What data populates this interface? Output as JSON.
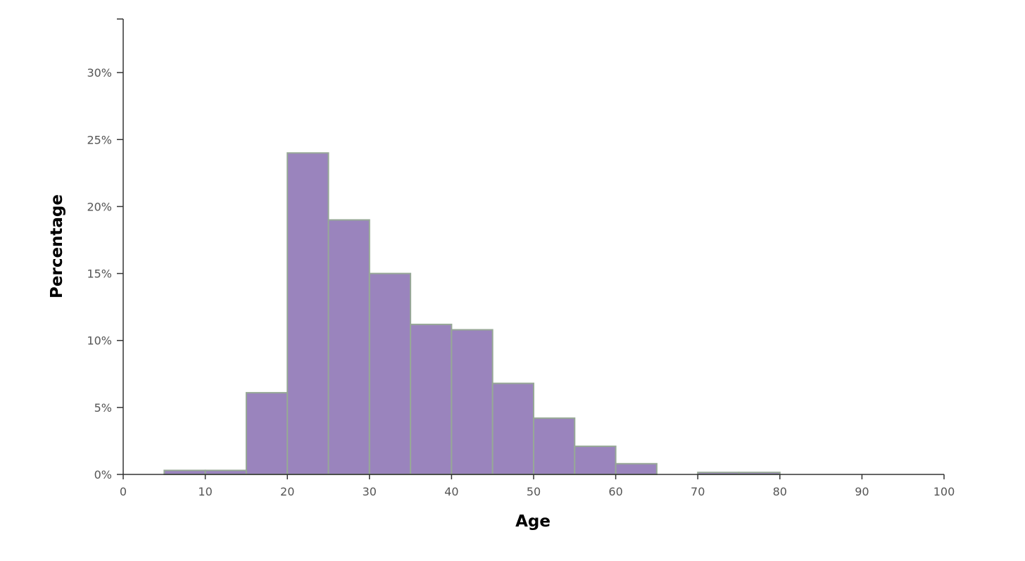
{
  "chart_data": {
    "type": "bar",
    "histogram": true,
    "title": "",
    "xlabel": "Age",
    "ylabel": "Percentage",
    "xlim": [
      0,
      100
    ],
    "ylim": [
      0,
      34
    ],
    "x_ticks": [
      0,
      10,
      20,
      30,
      40,
      50,
      60,
      70,
      80,
      90,
      100
    ],
    "x_tick_labels": [
      "0",
      "10",
      "20",
      "30",
      "40",
      "50",
      "60",
      "70",
      "80",
      "90",
      "100"
    ],
    "y_ticks": [
      0,
      5,
      10,
      15,
      20,
      25,
      30
    ],
    "y_tick_labels": [
      "0%",
      "5%",
      "10%",
      "15%",
      "20%",
      "25%",
      "30%"
    ],
    "grid": false,
    "bar_color": "#9a84bd",
    "bar_edge_color": "#97a897",
    "bins": [
      {
        "x0": 5,
        "x1": 10,
        "value": 0.3
      },
      {
        "x0": 10,
        "x1": 15,
        "value": 0.3
      },
      {
        "x0": 15,
        "x1": 20,
        "value": 6.1
      },
      {
        "x0": 20,
        "x1": 25,
        "value": 24.0
      },
      {
        "x0": 25,
        "x1": 30,
        "value": 19.0
      },
      {
        "x0": 30,
        "x1": 35,
        "value": 15.0
      },
      {
        "x0": 35,
        "x1": 40,
        "value": 11.2
      },
      {
        "x0": 40,
        "x1": 45,
        "value": 10.8
      },
      {
        "x0": 45,
        "x1": 50,
        "value": 6.8
      },
      {
        "x0": 50,
        "x1": 55,
        "value": 4.2
      },
      {
        "x0": 55,
        "x1": 60,
        "value": 2.1
      },
      {
        "x0": 60,
        "x1": 65,
        "value": 0.8
      },
      {
        "x0": 70,
        "x1": 75,
        "value": 0.15
      },
      {
        "x0": 75,
        "x1": 80,
        "value": 0.15
      }
    ]
  }
}
